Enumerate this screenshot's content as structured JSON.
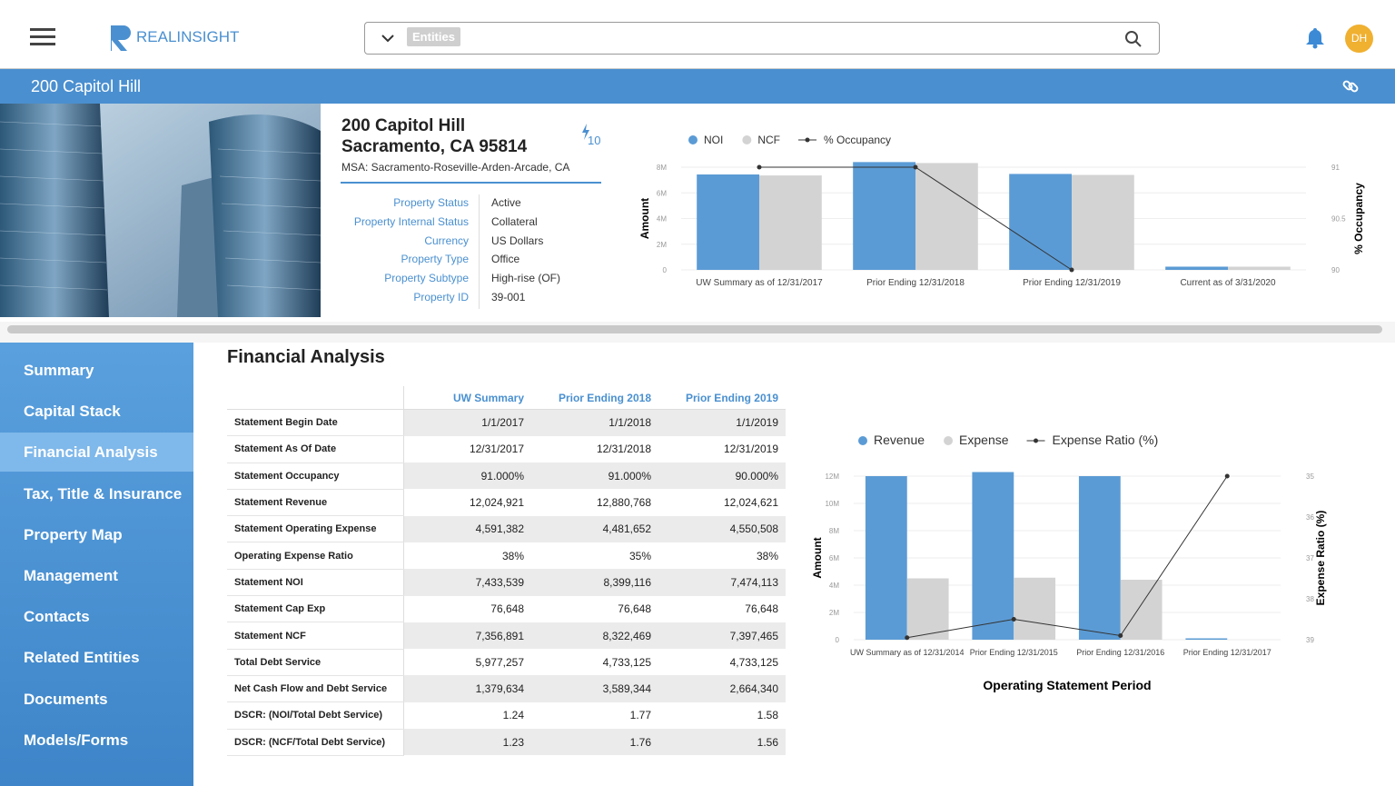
{
  "header": {
    "logo": "REALINSIGHT",
    "search_placeholder": "Entities",
    "avatar": "DH"
  },
  "banner": {
    "title": "200 Capitol Hill"
  },
  "property": {
    "name": "200 Capitol Hill",
    "address": "Sacramento, CA 95814",
    "msa": "MSA: Sacramento-Roseville-Arden-Arcade, CA",
    "badge": "10",
    "fields": [
      {
        "label": "Property Status",
        "value": "Active"
      },
      {
        "label": "Property Internal Status",
        "value": "Collateral"
      },
      {
        "label": "Currency",
        "value": "US Dollars"
      },
      {
        "label": "Property Type",
        "value": "Office"
      },
      {
        "label": "Property Subtype",
        "value": "High-rise (OF)"
      },
      {
        "label": "Property ID",
        "value": "39-001"
      }
    ]
  },
  "nav": {
    "items": [
      "Summary",
      "Capital Stack",
      "Financial Analysis",
      "Tax, Title & Insurance",
      "Property Map",
      "Management",
      "Contacts",
      "Related Entities",
      "Documents",
      "Models/Forms"
    ],
    "active": 2
  },
  "financial": {
    "title": "Financial Analysis",
    "columns": [
      "UW Summary",
      "Prior Ending 2018",
      "Prior Ending 2019"
    ],
    "rows": [
      [
        "Statement Begin Date",
        "1/1/2017",
        "1/1/2018",
        "1/1/2019"
      ],
      [
        "Statement As Of Date",
        "12/31/2017",
        "12/31/2018",
        "12/31/2019"
      ],
      [
        "Statement Occupancy",
        "91.000%",
        "91.000%",
        "90.000%"
      ],
      [
        "Statement Revenue",
        "12,024,921",
        "12,880,768",
        "12,024,621"
      ],
      [
        "Statement Operating Expense",
        "4,591,382",
        "4,481,652",
        "4,550,508"
      ],
      [
        "Operating Expense Ratio",
        "38%",
        "35%",
        "38%"
      ],
      [
        "Statement NOI",
        "7,433,539",
        "8,399,116",
        "7,474,113"
      ],
      [
        "Statement Cap Exp",
        "76,648",
        "76,648",
        "76,648"
      ],
      [
        "Statement NCF",
        "7,356,891",
        "8,322,469",
        "7,397,465"
      ],
      [
        "Total Debt Service",
        "5,977,257",
        "4,733,125",
        "4,733,125"
      ],
      [
        "Net Cash Flow and Debt Service",
        "1,379,634",
        "3,589,344",
        "2,664,340"
      ],
      [
        "DSCR: (NOI/Total Debt Service)",
        "1.24",
        "1.77",
        "1.58"
      ],
      [
        "DSCR: (NCF/Total Debt Service)",
        "1.23",
        "1.76",
        "1.56"
      ]
    ]
  },
  "chart_data": [
    {
      "type": "bar",
      "ylabel": "Amount",
      "y2label": "% Occupancy",
      "grid": true,
      "categories": [
        "UW Summary as of 12/31/2017",
        "Prior Ending 12/31/2018",
        "Prior Ending 12/31/2019",
        "Current as of 3/31/2020"
      ],
      "series": [
        {
          "name": "NOI",
          "color": "#5b9bd5",
          "values": [
            7433539,
            8399116,
            7474113,
            250000
          ]
        },
        {
          "name": "NCF",
          "color": "#d3d3d3",
          "values": [
            7356891,
            8322469,
            7397465,
            250000
          ]
        },
        {
          "name": "% Occupancy",
          "type": "line",
          "axis": "y2",
          "color": "#333333",
          "values": [
            91,
            91,
            90,
            null
          ]
        }
      ],
      "ylim": [
        0,
        8000000
      ],
      "yticks": [
        0,
        {
          "value": 2000000,
          "label": "2M"
        },
        {
          "value": 4000000,
          "label": "4M"
        },
        {
          "value": 6000000,
          "label": "6M"
        },
        {
          "value": 8000000,
          "label": "8M"
        }
      ],
      "y2lim": [
        90,
        91
      ],
      "y2ticks": [
        90,
        90.5,
        91
      ]
    },
    {
      "type": "bar",
      "ylabel": "Amount",
      "y2label": "Expense Ratio (%)",
      "xlabel": "Operating Statement Period",
      "grid": true,
      "categories": [
        "UW Summary as of 12/31/2014",
        "Prior Ending 12/31/2015",
        "Prior Ending 12/31/2016",
        "Prior Ending 12/31/2017"
      ],
      "series": [
        {
          "name": "Revenue",
          "color": "#5b9bd5",
          "values": [
            12000000,
            12300000,
            12000000,
            100000
          ]
        },
        {
          "name": "Expense",
          "color": "#d3d3d3",
          "values": [
            4500000,
            4550000,
            4400000,
            0
          ]
        },
        {
          "name": "Expense Ratio (%)",
          "type": "line",
          "axis": "y2",
          "color": "#333333",
          "values": [
            38.95,
            38.5,
            38.9,
            35
          ]
        }
      ],
      "ylim": [
        0,
        12000000
      ],
      "yticks": [
        0,
        {
          "value": 2000000,
          "label": "2M"
        },
        {
          "value": 4000000,
          "label": "4M"
        },
        {
          "value": 6000000,
          "label": "6M"
        },
        {
          "value": 8000000,
          "label": "8M"
        },
        {
          "value": 10000000,
          "label": "10M"
        },
        {
          "value": 12000000,
          "label": "12M"
        }
      ],
      "y2lim": [
        39,
        35
      ],
      "y2ticks": [
        35,
        36,
        37,
        38,
        39
      ]
    }
  ]
}
